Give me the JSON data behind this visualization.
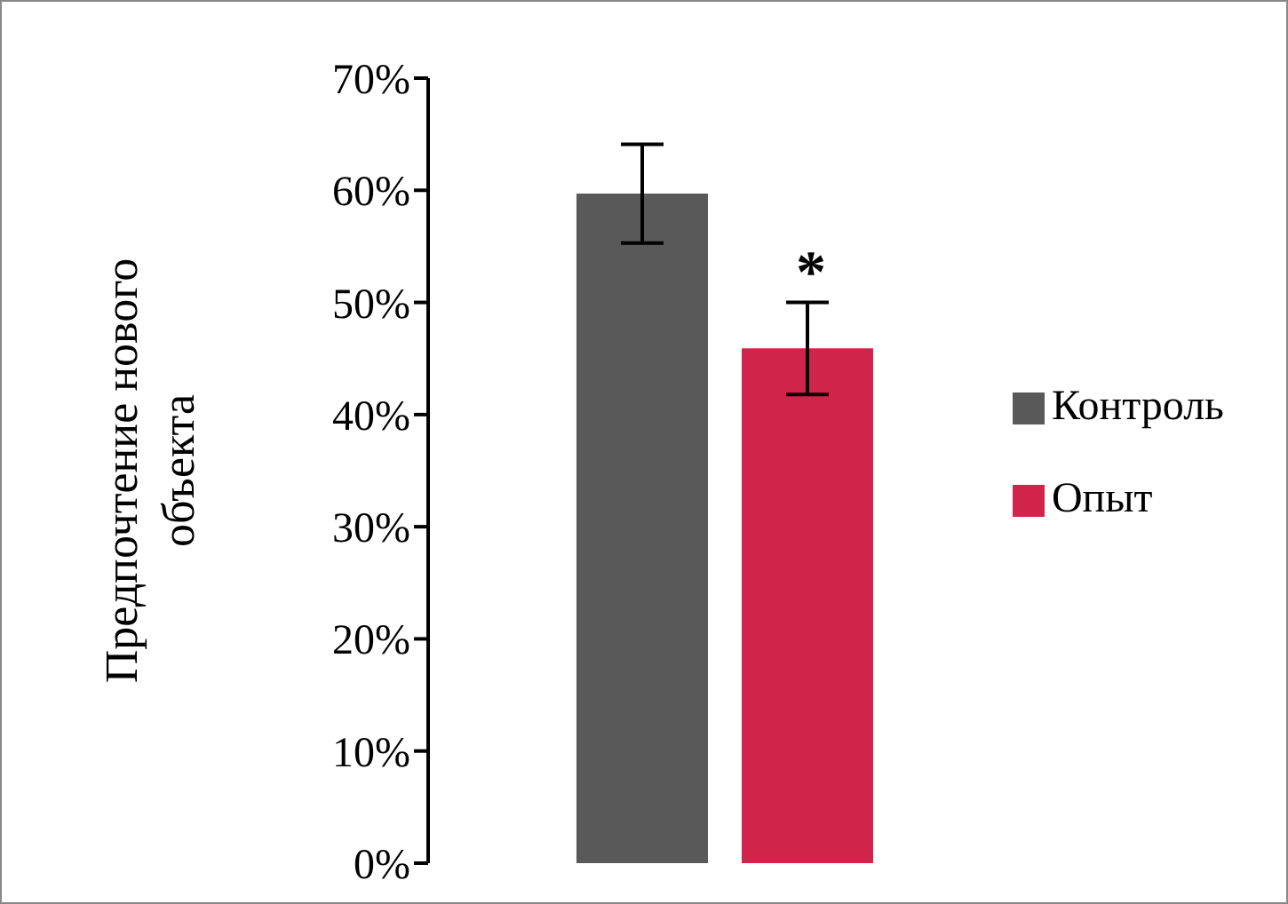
{
  "chart_data": {
    "type": "bar",
    "ylabel": "Предпочтение нового объекта",
    "categories": [
      null
    ],
    "series": [
      {
        "name": "Контроль",
        "color": "#595959",
        "values": [
          59.7
        ],
        "errors": [
          4.4
        ]
      },
      {
        "name": "Опыт",
        "color": "#d0244a",
        "values": [
          45.9
        ],
        "errors": [
          4.1
        ]
      }
    ],
    "ylim": [
      0,
      70
    ],
    "yticks": [
      {
        "value": 0,
        "label": "0%"
      },
      {
        "value": 10,
        "label": "10%"
      },
      {
        "value": 20,
        "label": "20%"
      },
      {
        "value": 30,
        "label": "30%"
      },
      {
        "value": 40,
        "label": "40%"
      },
      {
        "value": 50,
        "label": "50%"
      },
      {
        "value": 60,
        "label": "60%"
      },
      {
        "value": 70,
        "label": "70%"
      }
    ],
    "annotations": [
      "*"
    ],
    "legend": "right",
    "grid": false
  }
}
